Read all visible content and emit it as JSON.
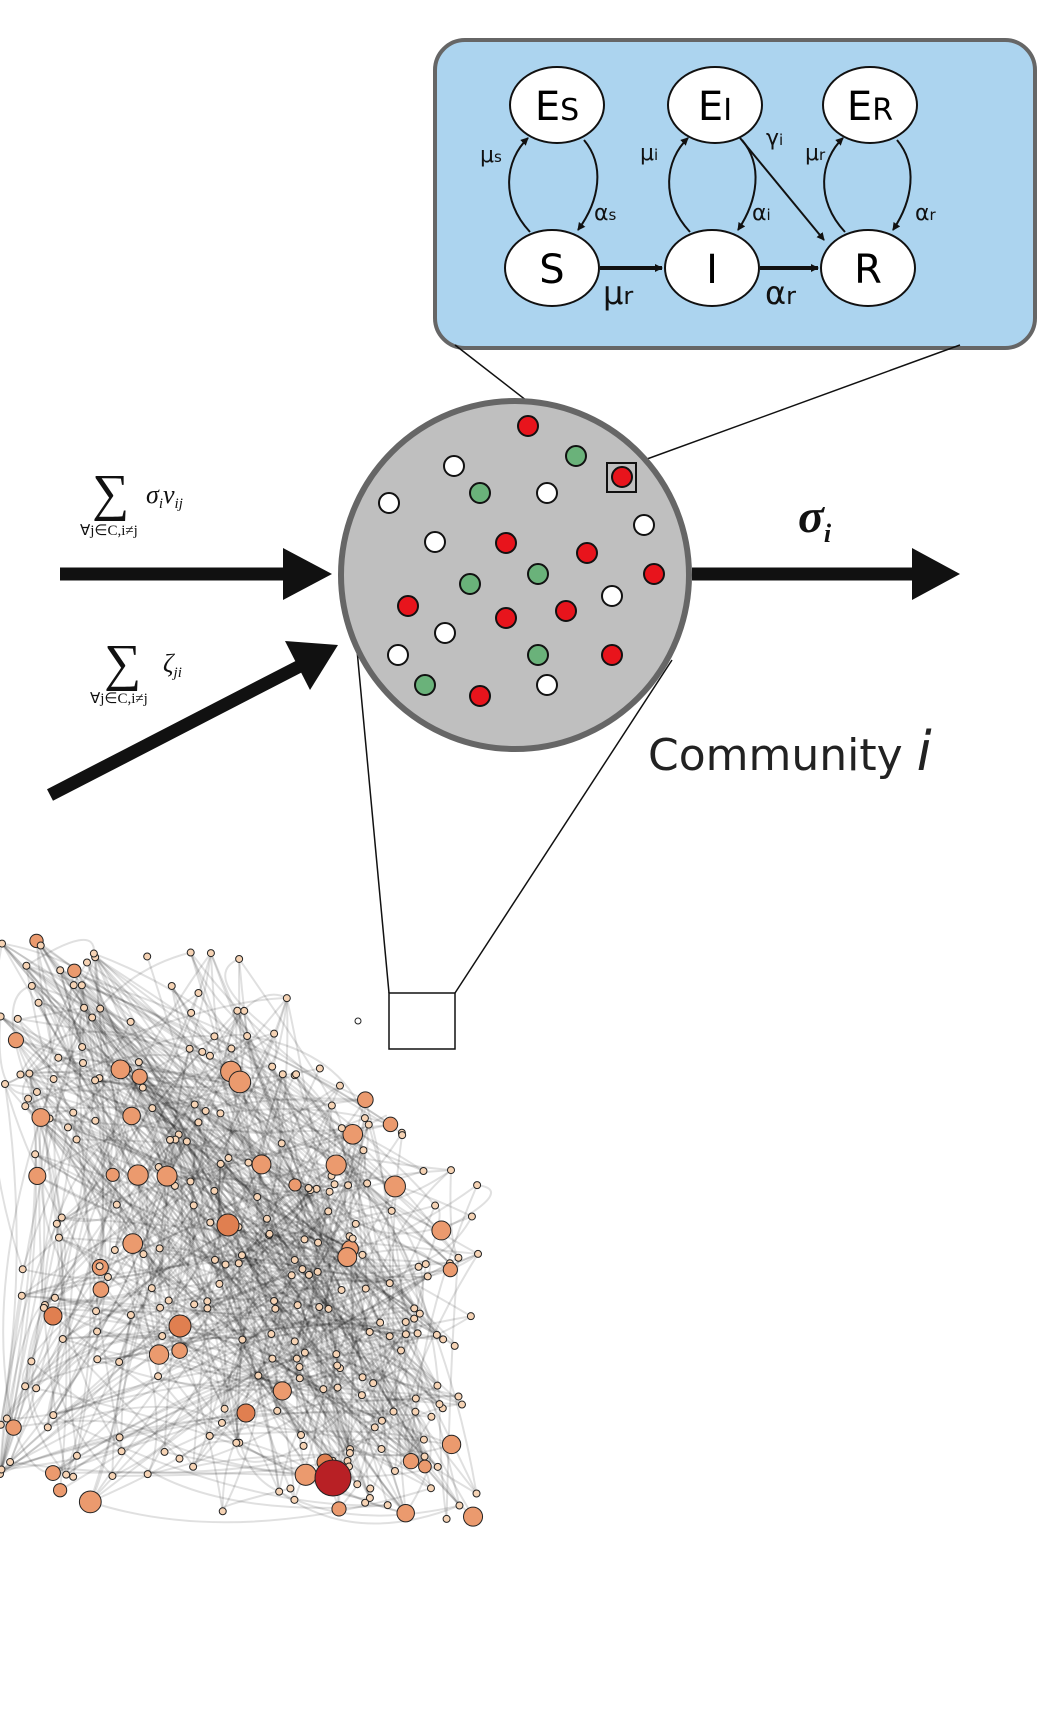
{
  "model": {
    "nodes": [
      {
        "label": "E",
        "sub": "S"
      },
      {
        "label": "E",
        "sub": "I"
      },
      {
        "label": "E",
        "sub": "R"
      },
      {
        "label": "S"
      },
      {
        "label": "I"
      },
      {
        "label": "R"
      }
    ],
    "rates": [
      {
        "symbol": "μ",
        "sub": "s"
      },
      {
        "symbol": "α",
        "sub": "s"
      },
      {
        "symbol": "μ",
        "sub": "i"
      },
      {
        "symbol": "α",
        "sub": "i"
      },
      {
        "symbol": "γ",
        "sub": "i"
      },
      {
        "symbol": "μ",
        "sub": "r"
      },
      {
        "symbol": "α",
        "sub": "r"
      },
      {
        "symbol": "μ",
        "sub": "r"
      },
      {
        "symbol": "α",
        "sub": "r"
      }
    ]
  },
  "inflow_migration": {
    "sum": "∑",
    "under": "∀j∈C,i≠j",
    "term": "σ",
    "term_sub": "i",
    "term2": "ν",
    "term2_sub": "ij"
  },
  "inflow_travel": {
    "sum": "∑",
    "under": "∀j∈C,i≠j",
    "term": "ζ",
    "term_sub": "ji"
  },
  "outflow": {
    "term": "σ",
    "sub": "i"
  },
  "community": {
    "text": "Community",
    "var": "i"
  }
}
